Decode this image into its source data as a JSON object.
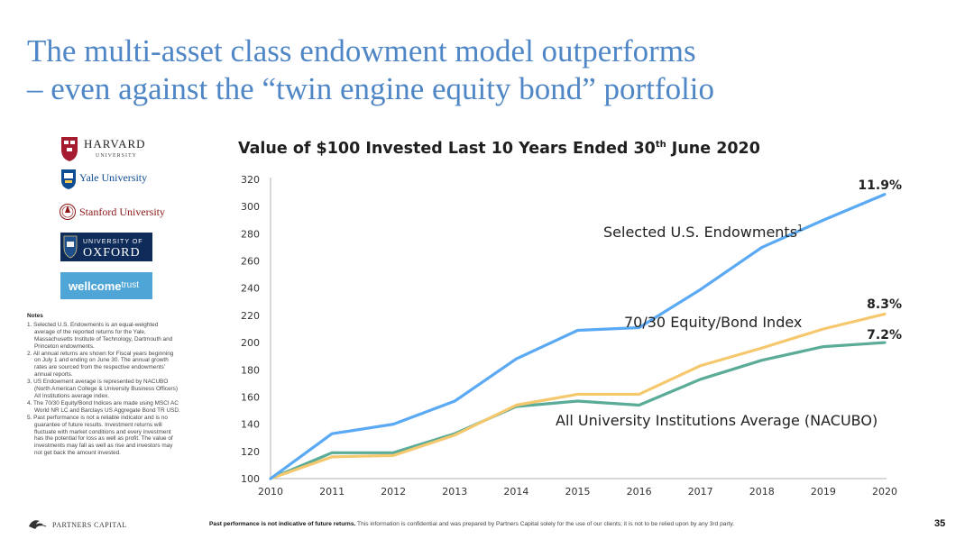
{
  "slide": {
    "title_line1": "The multi-asset class endowment model outperforms",
    "title_line2": "– even against the “twin engine equity bond” portfolio",
    "page_number": "35"
  },
  "logos": {
    "harvard_main": "HARVARD",
    "harvard_sub": "UNIVERSITY",
    "yale": "Yale University",
    "stanford": "Stanford University",
    "oxford_top": "UNIVERSITY OF",
    "oxford_main": "OXFORD",
    "wellcome_bold": "wellcome",
    "wellcome_light": "trust"
  },
  "notes": {
    "title": "Notes",
    "items": [
      "1. Selected U.S. Endowments is an equal-weighted average of the reported returns for the Yale, Massachusetts Institute of Technology, Dartmouth and Princeton endowments.",
      "2. All annual returns are shown for Fiscal years beginning on July 1 and ending on June 30. The annual growth rates are sourced from the respective endowments’ annual reports.",
      "3. US Endowment average is represented by NACUBO (North American College & University Business Officers) All Institutions average index.",
      "4. The 70/30 Equity/Bond Indices are made using MSCI AC World NR LC and Barclays US Aggregate Bond TR USD.",
      "5. Past performance is not a reliable indicator and is no guarantee of future results. Investment returns will fluctuate with market conditions and every investment has the potential for loss as well as profit. The value of investments may fall as well as rise and investors may not get back the amount invested."
    ]
  },
  "footer": {
    "company": "PARTNERS CAPITAL",
    "disclaimer_bold": "Past performance is not indicative of future returns.",
    "disclaimer": " This information is confidential and was prepared by Partners Capital solely for the use of our clients; it is not to be relied upon by any 3rd party."
  },
  "chart_title": {
    "main": "Value of $100 Invested Last 10 Years Ended 30",
    "sup": "th",
    "end": " June 2020"
  },
  "chart_data": {
    "type": "line",
    "title": "Value of $100 Invested Last 10 Years Ended 30th June 2020",
    "xlabel": "",
    "ylabel": "",
    "x": [
      2010,
      2011,
      2012,
      2013,
      2014,
      2015,
      2016,
      2017,
      2018,
      2019,
      2020
    ],
    "ylim": [
      100,
      320
    ],
    "yticks": [
      100,
      120,
      140,
      160,
      180,
      200,
      220,
      240,
      260,
      280,
      300,
      320
    ],
    "grid": false,
    "series": [
      {
        "name": "Selected U.S. Endowments",
        "name_sup": "1",
        "color": "#5aa9f5",
        "end_label": "11.9%",
        "values": [
          100,
          133,
          140,
          157,
          188,
          209,
          211,
          239,
          270,
          290,
          309
        ]
      },
      {
        "name": "70/30 Equity/Bond Index",
        "color": "#f5c86e",
        "end_label": "8.3%",
        "values": [
          100,
          116,
          117,
          132,
          154,
          162,
          162,
          183,
          196,
          210,
          221
        ]
      },
      {
        "name": "All University Institutions Average (NACUBO)",
        "color": "#5aab98",
        "end_label": "7.2%",
        "values": [
          100,
          119,
          119,
          133,
          153,
          157,
          154,
          173,
          187,
          197,
          200
        ]
      }
    ]
  }
}
